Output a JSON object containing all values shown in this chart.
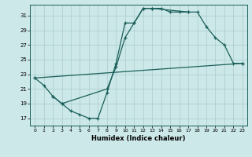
{
  "xlabel": "Humidex (Indice chaleur)",
  "background_color": "#cce8e8",
  "line_color": "#1a5f5a",
  "grid_color": "#aacccc",
  "xlim": [
    -0.5,
    23.5
  ],
  "ylim": [
    16.0,
    32.5
  ],
  "yticks": [
    17,
    19,
    21,
    23,
    25,
    27,
    29,
    31
  ],
  "xticks": [
    0,
    1,
    2,
    3,
    4,
    5,
    6,
    7,
    8,
    9,
    10,
    11,
    12,
    13,
    14,
    15,
    16,
    17,
    18,
    19,
    20,
    21,
    22,
    23
  ],
  "series": [
    {
      "x": [
        0,
        1,
        2,
        3,
        4,
        5,
        6,
        7,
        8,
        9,
        10,
        11,
        12,
        13,
        14,
        15,
        16,
        17
      ],
      "y": [
        22.5,
        21.5,
        20.0,
        19.0,
        18.0,
        17.5,
        17.0,
        17.0,
        20.5,
        24.5,
        30.0,
        30.0,
        32.0,
        32.0,
        32.0,
        31.5,
        31.5,
        31.5
      ]
    },
    {
      "x": [
        0,
        23
      ],
      "y": [
        22.5,
        24.5
      ]
    },
    {
      "x": [
        2,
        3,
        8,
        9,
        10,
        11,
        12,
        13,
        17,
        18,
        19,
        20,
        21,
        22,
        23
      ],
      "y": [
        20.0,
        19.0,
        21.0,
        24.0,
        28.0,
        30.0,
        32.0,
        32.0,
        31.5,
        31.5,
        29.5,
        28.0,
        27.0,
        24.5,
        24.5
      ]
    }
  ]
}
